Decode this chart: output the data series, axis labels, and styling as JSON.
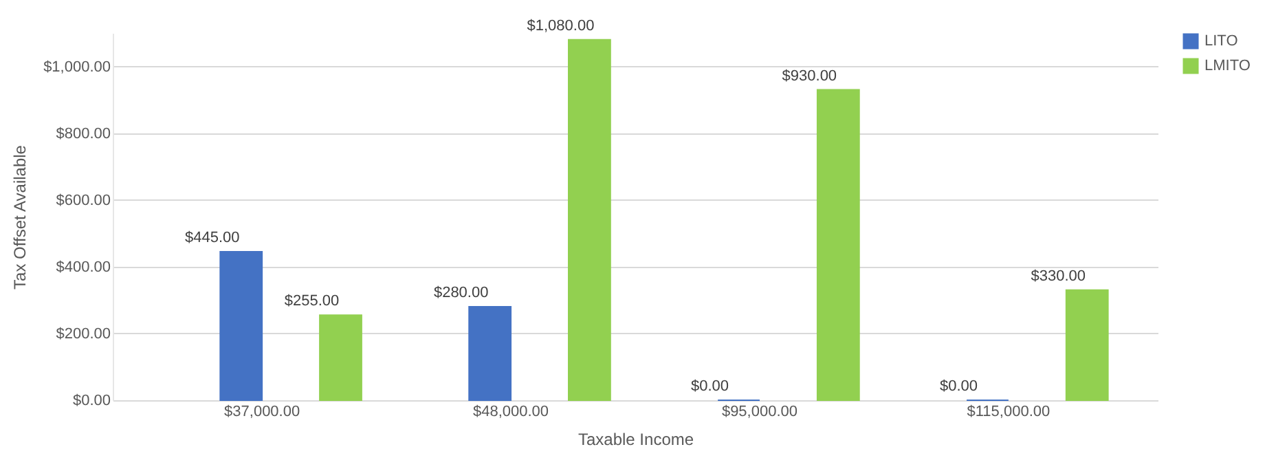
{
  "chart_data": {
    "type": "bar",
    "xlabel": "Taxable Income",
    "ylabel": "Tax Offset Available",
    "categories": [
      "$37,000.00",
      "$48,000.00",
      "$95,000.00",
      "$115,000.00"
    ],
    "series": [
      {
        "name": "LITO",
        "color": "#4472c4",
        "values": [
          445,
          280,
          0,
          0
        ],
        "value_labels": [
          "$445.00",
          "$280.00",
          "$0.00",
          "$0.00"
        ]
      },
      {
        "name": "LMITO",
        "color": "#92d050",
        "values": [
          255,
          1080,
          930,
          330
        ],
        "value_labels": [
          "$255.00",
          "$1,080.00",
          "$930.00",
          "$330.00"
        ]
      }
    ],
    "ylim": [
      0,
      1100
    ],
    "yticks": [
      {
        "value": 0,
        "label": "$0.00"
      },
      {
        "value": 200,
        "label": "$200.00"
      },
      {
        "value": 400,
        "label": "$400.00"
      },
      {
        "value": 600,
        "label": "$600.00"
      },
      {
        "value": 800,
        "label": "$800.00"
      },
      {
        "value": 1000,
        "label": "$1,000.00"
      }
    ],
    "grid": "y",
    "legend": "right"
  }
}
